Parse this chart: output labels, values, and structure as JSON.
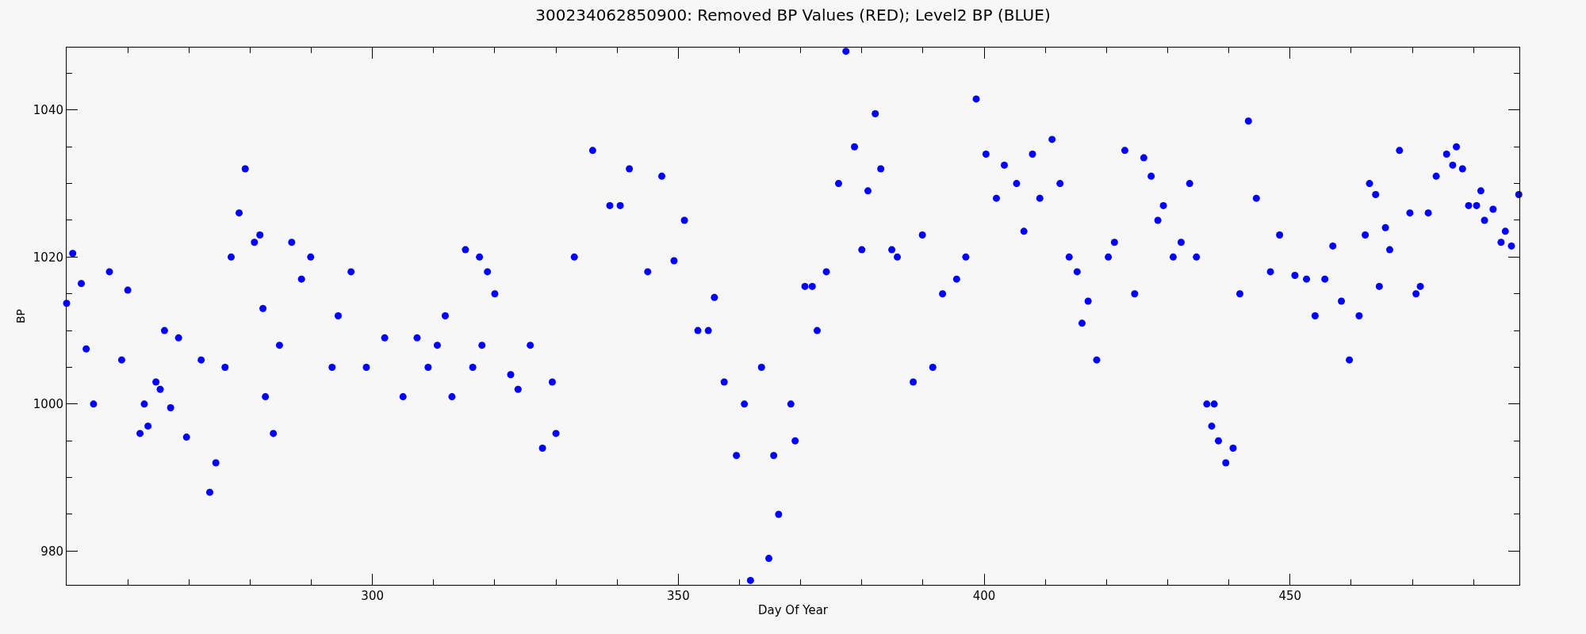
{
  "chart_data": {
    "type": "scatter",
    "title": "300234062850900: Removed BP Values (RED); Level2 BP (BLUE)",
    "xlabel": "Day Of Year",
    "ylabel": "BP",
    "x": [
      250,
      251,
      252.4,
      253.2,
      254.4,
      257,
      259,
      260,
      262,
      262.7,
      263.3,
      264.6,
      265.3,
      266,
      267,
      268.3,
      269.6,
      272,
      273.4,
      274.4,
      275.9,
      276.9,
      278.2,
      279.2,
      280.7,
      281.6,
      282.1,
      282.5,
      283.8,
      284.8,
      286.8,
      288.4,
      289.9,
      293.4,
      294.4,
      296.5,
      299,
      302,
      305,
      307.3,
      309.1,
      310.6,
      311.9,
      313,
      315.2,
      316.4,
      317.5,
      317.9,
      318.8,
      320,
      322.6,
      323.8,
      325.8,
      327.8,
      329.4,
      330,
      333,
      336,
      338.8,
      340.5,
      342,
      345,
      347.3,
      349.3,
      351,
      353.2,
      354.9,
      355.9,
      357.5,
      359.5,
      360.8,
      361.8,
      363.6,
      364.8,
      365.6,
      366.4,
      368.4,
      369.1,
      370.7,
      371.9,
      372.7,
      374.2,
      376.2,
      377.4,
      378.8,
      380,
      381,
      382.2,
      383.1,
      384.9,
      385.8,
      388.4,
      389.9,
      391.6,
      393.2,
      395.5,
      397,
      398.7,
      400.3,
      402,
      403.3,
      405.3,
      406.5,
      407.9,
      409.1,
      411.1,
      412.4,
      413.9,
      415.2,
      416,
      417,
      418.4,
      420.3,
      421.3,
      423,
      424.6,
      426.1,
      427.3,
      428.4,
      429.3,
      430.9,
      432.2,
      433.6,
      434.7,
      436.4,
      437.2,
      437.6,
      438.3,
      439.5,
      440.7,
      441.8,
      443.2,
      444.5,
      446.8,
      448.3,
      450.8,
      452.7,
      454.1,
      455.7,
      457,
      458.4,
      459.7,
      461.3,
      462.3,
      463,
      464,
      464.6,
      465.6,
      466.3,
      467.9,
      469.6,
      470.6,
      471.3,
      472.6,
      473.9,
      475.6,
      476.6,
      477.2,
      478.2,
      479.2,
      480.5,
      481.2,
      481.8,
      483.2,
      484.5,
      485.2,
      486.2,
      487.4
    ],
    "series": [
      {
        "color": "#0000ff",
        "values": [
          1013.7,
          1020.5,
          1016.4,
          1007.5,
          1000,
          1018,
          1006,
          1015.5,
          996,
          1000,
          997,
          1003,
          1002,
          1010,
          999.5,
          1009,
          995.5,
          1006,
          988,
          992,
          1005,
          1020,
          1026,
          1032,
          1022,
          1023,
          1013,
          1001,
          996,
          1008,
          1022,
          1017,
          1020,
          1005,
          1012,
          1018,
          1005,
          1009,
          1001,
          1009,
          1005,
          1008,
          1012,
          1001,
          1021,
          1005,
          1020,
          1008,
          1018,
          1015,
          1004,
          1002,
          1008,
          994,
          1003,
          996,
          1020,
          1034.5,
          1027,
          1027,
          1032,
          1018,
          1031,
          1019.5,
          1025,
          1010,
          1010,
          1014.5,
          1003,
          993,
          1000,
          976,
          1005,
          979,
          993,
          985,
          1000,
          995,
          1016,
          1016,
          1010,
          1018,
          1030,
          1048,
          1035,
          1021,
          1029,
          1039.5,
          1032,
          1021,
          1020,
          1003,
          1023,
          1005,
          1015,
          1017,
          1020,
          1041.5,
          1034,
          1028,
          1032.5,
          1030,
          1023.5,
          1034,
          1028,
          1036,
          1030,
          1020,
          1018,
          1011,
          1014,
          1006,
          1020,
          1022,
          1034.5,
          1015,
          1033.5,
          1031,
          1025,
          1027,
          1020,
          1022,
          1030,
          1020,
          1000,
          997,
          1000,
          995,
          992,
          994,
          1015,
          1038.5,
          1028,
          1018,
          1023,
          1017.5,
          1017,
          1012,
          1017,
          1021.5,
          1014,
          1006,
          1012,
          1023,
          1030,
          1028.5,
          1016,
          1024,
          1021,
          1034.5,
          1026,
          1015,
          1016,
          1026,
          1031,
          1034,
          1032.5,
          1035,
          1032,
          1027,
          1027,
          1029,
          1025,
          1026.5,
          1022,
          1023.5,
          1021.5,
          1028.5
        ]
      }
    ],
    "marker": "circle",
    "xlim": [
      250,
      487.5
    ],
    "ylim": [
      975.4,
      1048.5
    ],
    "xticks": [
      {
        "value": 260,
        "label": null
      },
      {
        "value": 270,
        "label": null
      },
      {
        "value": 280,
        "label": null
      },
      {
        "value": 290,
        "label": null
      },
      300,
      {
        "value": 310,
        "label": null
      },
      {
        "value": 320,
        "label": null
      },
      {
        "value": 330,
        "label": null
      },
      {
        "value": 340,
        "label": null
      },
      350,
      {
        "value": 360,
        "label": null
      },
      {
        "value": 370,
        "label": null
      },
      {
        "value": 380,
        "label": null
      },
      {
        "value": 390,
        "label": null
      },
      400,
      {
        "value": 410,
        "label": null
      },
      {
        "value": 420,
        "label": null
      },
      {
        "value": 430,
        "label": null
      },
      {
        "value": 440,
        "label": null
      },
      450,
      {
        "value": 460,
        "label": null
      },
      {
        "value": 470,
        "label": null
      },
      {
        "value": 480,
        "label": null
      }
    ],
    "yticks": [
      980,
      {
        "value": 985,
        "label": null
      },
      {
        "value": 990,
        "label": null
      },
      {
        "value": 995,
        "label": null
      },
      1000,
      {
        "value": 1005,
        "label": null
      },
      {
        "value": 1010,
        "label": null
      },
      {
        "value": 1015,
        "label": null
      },
      1020,
      {
        "value": 1025,
        "label": null
      },
      {
        "value": 1030,
        "label": null
      },
      {
        "value": 1035,
        "label": null
      },
      1040,
      {
        "value": 1045,
        "label": null
      }
    ],
    "grid": false
  }
}
